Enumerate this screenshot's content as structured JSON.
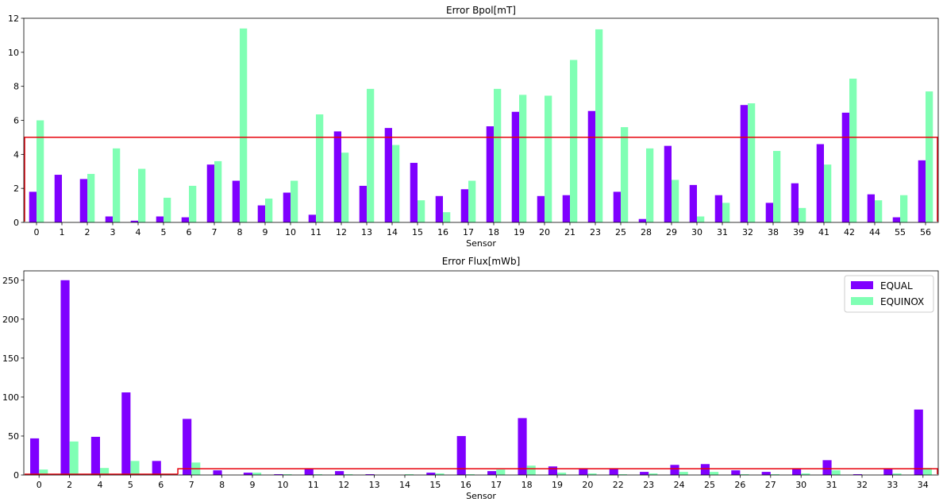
{
  "colors": {
    "equal": "#7f00ff",
    "equinox": "#80ffb4",
    "threshold": "#e8000b"
  },
  "chart_data": [
    {
      "type": "bar",
      "title": "Error Bpol[mT]",
      "xlabel": "Sensor",
      "ylabel": "",
      "ylim": [
        0,
        12
      ],
      "yticks": [
        0,
        2,
        4,
        6,
        8,
        10,
        12
      ],
      "grid": false,
      "legend": "none",
      "categories": [
        "0",
        "1",
        "2",
        "3",
        "4",
        "5",
        "6",
        "7",
        "8",
        "9",
        "10",
        "11",
        "12",
        "13",
        "14",
        "15",
        "16",
        "17",
        "18",
        "19",
        "20",
        "21",
        "23",
        "25",
        "28",
        "29",
        "30",
        "31",
        "32",
        "38",
        "39",
        "41",
        "42",
        "44",
        "55",
        "56"
      ],
      "series": [
        {
          "name": "EQUAL",
          "values": [
            1.8,
            2.8,
            2.55,
            0.35,
            0.1,
            0.35,
            0.3,
            3.4,
            2.45,
            1.0,
            1.75,
            0.45,
            5.35,
            2.15,
            5.55,
            3.5,
            1.55,
            1.95,
            5.65,
            6.5,
            1.55,
            1.6,
            6.55,
            1.8,
            0.2,
            4.5,
            2.2,
            1.6,
            6.9,
            1.15,
            2.3,
            4.6,
            6.45,
            1.65,
            0.3,
            3.65
          ]
        },
        {
          "name": "EQUINOX",
          "values": [
            6.0,
            0,
            2.85,
            4.35,
            3.15,
            1.45,
            2.15,
            3.6,
            11.4,
            1.4,
            2.45,
            6.35,
            4.1,
            7.85,
            4.55,
            1.3,
            0.6,
            2.45,
            7.85,
            7.5,
            7.45,
            9.55,
            11.35,
            5.6,
            4.35,
            2.5,
            0.35,
            1.15,
            7.0,
            4.2,
            0.85,
            3.4,
            8.45,
            1.3,
            1.6,
            7.7
          ]
        }
      ],
      "threshold": 5.0
    },
    {
      "type": "bar",
      "title": "Error Flux[mWb]",
      "xlabel": "Sensor",
      "ylabel": "",
      "ylim": [
        0,
        262
      ],
      "yticks": [
        0,
        50,
        100,
        150,
        200,
        250
      ],
      "grid": false,
      "legend": "top-right",
      "categories": [
        "0",
        "2",
        "4",
        "5",
        "6",
        "7",
        "8",
        "9",
        "10",
        "11",
        "12",
        "13",
        "14",
        "15",
        "16",
        "17",
        "18",
        "19",
        "20",
        "22",
        "23",
        "24",
        "25",
        "26",
        "27",
        "30",
        "31",
        "32",
        "33",
        "34"
      ],
      "series": [
        {
          "name": "EQUAL",
          "values": [
            47,
            250,
            49,
            106,
            18,
            72,
            6,
            3,
            1,
            8,
            5,
            1,
            0,
            3,
            50,
            5,
            73,
            11,
            8,
            8,
            4,
            13,
            14,
            6,
            4,
            8,
            19,
            1,
            8,
            84
          ]
        },
        {
          "name": "EQUINOX",
          "values": [
            7,
            43,
            9,
            18,
            1,
            16,
            0,
            3,
            1,
            1,
            1,
            0,
            1,
            2,
            1,
            7,
            12,
            3,
            2,
            1,
            2,
            4,
            4,
            1,
            1,
            2,
            6,
            0,
            2,
            9
          ]
        }
      ],
      "threshold": 8,
      "threshold_start_index": 5
    }
  ]
}
